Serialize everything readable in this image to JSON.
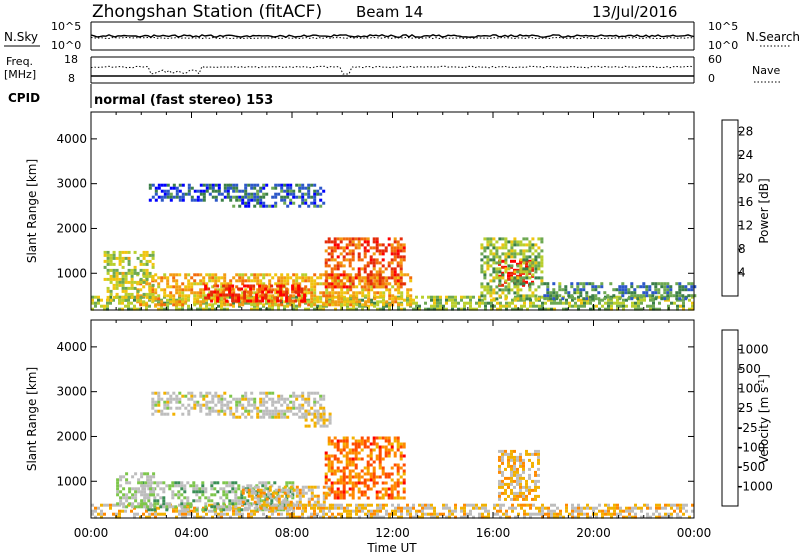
{
  "header": {
    "station": "Zhongshan Station (fitACF)",
    "beam": "Beam 14",
    "date": "13/Jul/2016"
  },
  "top_panels": {
    "nsky": {
      "label": "N.Sky",
      "left_ticks": [
        "10^5",
        "10^0"
      ]
    },
    "nsearch": {
      "label": "N.Search",
      "right_ticks": [
        "10^5",
        "10^0"
      ]
    },
    "freq": {
      "label_line1": "Freq.",
      "label_line2": "[MHz]",
      "left_ticks": [
        "18",
        "8"
      ]
    },
    "nave": {
      "label": "Nave",
      "right_ticks": [
        "60",
        "0"
      ]
    },
    "cpid": {
      "label": "CPID",
      "value": "normal (fast stereo) 153"
    }
  },
  "colors": {
    "power_scale": [
      "#0000ff",
      "#2c57c8",
      "#3b7f48",
      "#6da852",
      "#b9cf2d",
      "#f1c40f",
      "#f39c12",
      "#f36b0a",
      "#e52b0a",
      "#ff0000"
    ],
    "velocity_scale": [
      "#ff0000",
      "#ff4b00",
      "#ff8a00",
      "#f2b100",
      "#bdbdbd",
      "#bdbdbd",
      "#7dc64b",
      "#3a8f55",
      "#2563ba",
      "#1a3fd6"
    ]
  },
  "chart_data": [
    {
      "type": "heatmap",
      "title": "Power",
      "ylabel": "Slant Range [km]",
      "ylim": [
        180,
        4600
      ],
      "yticks": [
        "1000",
        "2000",
        "3000",
        "4000"
      ],
      "xlim_hours": [
        0,
        24
      ],
      "colorbar": {
        "label": "Power [dB]",
        "range": [
          0,
          30
        ],
        "ticks": [
          "4",
          "8",
          "12",
          "16",
          "20",
          "24",
          "28"
        ]
      },
      "regions": [
        {
          "t0": 0.0,
          "t1": 24.0,
          "r0": 200,
          "r1": 500,
          "value": 12
        },
        {
          "t0": 1.8,
          "t1": 12.7,
          "r0": 300,
          "r1": 1000,
          "value": 18
        },
        {
          "t0": 4.5,
          "t1": 8.5,
          "r0": 350,
          "r1": 750,
          "value": 26
        },
        {
          "t0": 9.3,
          "t1": 12.5,
          "r0": 700,
          "r1": 1800,
          "value": 24
        },
        {
          "t0": 16.2,
          "t1": 17.6,
          "r0": 700,
          "r1": 1300,
          "value": 28
        },
        {
          "t0": 15.5,
          "t1": 18.0,
          "r0": 450,
          "r1": 1800,
          "value": 12
        },
        {
          "t0": 5.5,
          "t1": 9.3,
          "r0": 2500,
          "r1": 3000,
          "value": 6
        },
        {
          "t0": 2.3,
          "t1": 5.5,
          "r0": 2600,
          "r1": 3000,
          "value": 5
        },
        {
          "t0": 18.0,
          "t1": 24.0,
          "r0": 400,
          "r1": 800,
          "value": 8
        },
        {
          "t0": 0.5,
          "t1": 2.5,
          "r0": 400,
          "r1": 1500,
          "value": 14
        }
      ]
    },
    {
      "type": "heatmap",
      "title": "Velocity",
      "ylabel": "Slant Range [km]",
      "ylim": [
        180,
        4600
      ],
      "yticks": [
        "1000",
        "2000",
        "3000",
        "4000"
      ],
      "xlabel": "Time UT",
      "xticks": [
        "00:00",
        "04:00",
        "08:00",
        "12:00",
        "16:00",
        "20:00",
        "00:00"
      ],
      "xlim_hours": [
        0,
        24
      ],
      "colorbar": {
        "label": "Velocity [m s-1]",
        "range": [
          -1250,
          1250
        ],
        "ticks": [
          "1000",
          "500",
          "100",
          "25",
          "-25",
          "-100",
          "-500",
          "-1000"
        ]
      },
      "regions": [
        {
          "t0": 0.0,
          "t1": 24.0,
          "r0": 200,
          "r1": 500,
          "value": -300
        },
        {
          "t0": 2.0,
          "t1": 8.0,
          "r0": 350,
          "r1": 1000,
          "value": 300
        },
        {
          "t0": 6.0,
          "t1": 9.5,
          "r0": 400,
          "r1": 900,
          "value": -300
        },
        {
          "t0": 9.3,
          "t1": 12.5,
          "r0": 600,
          "r1": 2000,
          "value": -700
        },
        {
          "t0": 16.2,
          "t1": 17.8,
          "r0": 600,
          "r1": 1700,
          "value": -300
        },
        {
          "t0": 5.5,
          "t1": 9.3,
          "r0": 2400,
          "r1": 3000,
          "value": 0
        },
        {
          "t0": 2.4,
          "t1": 5.4,
          "r0": 2500,
          "r1": 3000,
          "value": 0
        },
        {
          "t0": 8.5,
          "t1": 9.5,
          "r0": 2200,
          "r1": 2600,
          "value": -150
        },
        {
          "t0": 1.0,
          "t1": 2.5,
          "r0": 400,
          "r1": 1200,
          "value": 150
        }
      ]
    }
  ]
}
